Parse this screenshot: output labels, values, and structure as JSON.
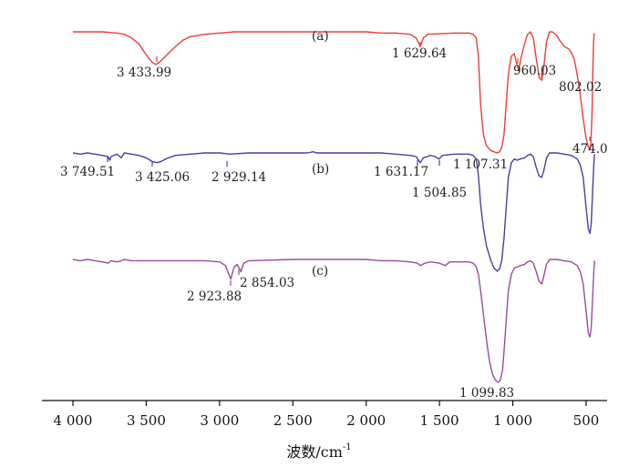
{
  "chart_data": {
    "type": "line",
    "title": "",
    "xlabel": "波数/cm",
    "xlabel_superscript": "-1",
    "xlim": [
      4150,
      440
    ],
    "x_reversed": true,
    "grid": false,
    "x_ticks": [
      {
        "value": 4000,
        "label": "4 000"
      },
      {
        "value": 3500,
        "label": "3 500"
      },
      {
        "value": 3000,
        "label": "3 000"
      },
      {
        "value": 2500,
        "label": "2 500"
      },
      {
        "value": 2000,
        "label": "2 000"
      },
      {
        "value": 1500,
        "label": "1 500"
      },
      {
        "value": 1000,
        "label": "1 000"
      },
      {
        "value": 500,
        "label": "500"
      }
    ],
    "series": [
      {
        "name": "(a)",
        "color": "#e8403a",
        "peaks": [
          "3 433.99",
          "1 629.64",
          "960.03",
          "802.02",
          "474.0"
        ],
        "points": [
          [
            4000,
            0.0
          ],
          [
            3900,
            0.0
          ],
          [
            3800,
            0.0
          ],
          [
            3700,
            0.01
          ],
          [
            3650,
            0.02
          ],
          [
            3600,
            0.05
          ],
          [
            3550,
            0.1
          ],
          [
            3500,
            0.19
          ],
          [
            3460,
            0.25
          ],
          [
            3434,
            0.27
          ],
          [
            3400,
            0.24
          ],
          [
            3350,
            0.18
          ],
          [
            3300,
            0.12
          ],
          [
            3250,
            0.07
          ],
          [
            3200,
            0.04
          ],
          [
            3100,
            0.02
          ],
          [
            3000,
            0.01
          ],
          [
            2900,
            0.0
          ],
          [
            2500,
            0.0
          ],
          [
            2100,
            0.0
          ],
          [
            2000,
            0.0
          ],
          [
            1900,
            0.01
          ],
          [
            1800,
            0.01
          ],
          [
            1700,
            0.02
          ],
          [
            1660,
            0.05
          ],
          [
            1630,
            0.12
          ],
          [
            1610,
            0.05
          ],
          [
            1580,
            0.02
          ],
          [
            1400,
            0.01
          ],
          [
            1300,
            0.01
          ],
          [
            1270,
            0.02
          ],
          [
            1250,
            0.05
          ],
          [
            1235,
            0.2
          ],
          [
            1220,
            0.6
          ],
          [
            1200,
            0.85
          ],
          [
            1180,
            0.94
          ],
          [
            1150,
            0.98
          ],
          [
            1130,
            0.99
          ],
          [
            1107,
            1.0
          ],
          [
            1090,
            0.99
          ],
          [
            1075,
            0.95
          ],
          [
            1060,
            0.85
          ],
          [
            1045,
            0.6
          ],
          [
            1030,
            0.35
          ],
          [
            1010,
            0.2
          ],
          [
            990,
            0.18
          ],
          [
            975,
            0.26
          ],
          [
            960,
            0.32
          ],
          [
            945,
            0.22
          ],
          [
            920,
            0.1
          ],
          [
            900,
            0.02
          ],
          [
            880,
            0.0
          ],
          [
            860,
            0.05
          ],
          [
            840,
            0.22
          ],
          [
            820,
            0.38
          ],
          [
            802,
            0.4
          ],
          [
            790,
            0.3
          ],
          [
            770,
            0.08
          ],
          [
            750,
            0.0
          ],
          [
            730,
            0.0
          ],
          [
            700,
            0.03
          ],
          [
            680,
            0.07
          ],
          [
            650,
            0.12
          ],
          [
            620,
            0.14
          ],
          [
            600,
            0.17
          ],
          [
            580,
            0.23
          ],
          [
            560,
            0.36
          ],
          [
            540,
            0.52
          ],
          [
            520,
            0.72
          ],
          [
            500,
            0.88
          ],
          [
            485,
            0.95
          ],
          [
            474,
            0.97
          ],
          [
            468,
            0.93
          ],
          [
            460,
            0.7
          ],
          [
            455,
            0.38
          ],
          [
            450,
            0.12
          ],
          [
            445,
            0.01
          ]
        ]
      },
      {
        "name": "(b)",
        "color": "#4343a2",
        "peaks": [
          "3 749.51",
          "3 425.06",
          "2 929.14",
          "1 631.17",
          "1 504.85",
          "1 107.31"
        ],
        "points": [
          [
            4000,
            0.0
          ],
          [
            3950,
            0.01
          ],
          [
            3900,
            0.0
          ],
          [
            3850,
            0.01
          ],
          [
            3800,
            0.02
          ],
          [
            3760,
            0.03
          ],
          [
            3749,
            0.06
          ],
          [
            3740,
            0.03
          ],
          [
            3700,
            0.01
          ],
          [
            3670,
            0.04
          ],
          [
            3650,
            0.0
          ],
          [
            3600,
            0.01
          ],
          [
            3550,
            0.02
          ],
          [
            3500,
            0.04
          ],
          [
            3460,
            0.07
          ],
          [
            3425,
            0.08
          ],
          [
            3400,
            0.07
          ],
          [
            3350,
            0.04
          ],
          [
            3300,
            0.02
          ],
          [
            3200,
            0.01
          ],
          [
            3100,
            0.0
          ],
          [
            3000,
            0.0
          ],
          [
            2929,
            0.01
          ],
          [
            2800,
            0.0
          ],
          [
            2500,
            0.0
          ],
          [
            2400,
            0.0
          ],
          [
            2360,
            -0.01
          ],
          [
            2340,
            0.0
          ],
          [
            2100,
            0.0
          ],
          [
            1900,
            0.0
          ],
          [
            1800,
            0.01
          ],
          [
            1700,
            0.02
          ],
          [
            1660,
            0.03
          ],
          [
            1631,
            0.08
          ],
          [
            1610,
            0.04
          ],
          [
            1560,
            0.02
          ],
          [
            1530,
            0.03
          ],
          [
            1504,
            0.05
          ],
          [
            1480,
            0.02
          ],
          [
            1400,
            0.01
          ],
          [
            1300,
            0.01
          ],
          [
            1270,
            0.02
          ],
          [
            1250,
            0.05
          ],
          [
            1235,
            0.18
          ],
          [
            1220,
            0.42
          ],
          [
            1200,
            0.62
          ],
          [
            1180,
            0.76
          ],
          [
            1150,
            0.88
          ],
          [
            1130,
            0.94
          ],
          [
            1107,
            0.97
          ],
          [
            1090,
            0.95
          ],
          [
            1075,
            0.88
          ],
          [
            1060,
            0.7
          ],
          [
            1045,
            0.45
          ],
          [
            1030,
            0.2
          ],
          [
            1010,
            0.08
          ],
          [
            990,
            0.05
          ],
          [
            970,
            0.06
          ],
          [
            950,
            0.05
          ],
          [
            920,
            0.04
          ],
          [
            900,
            0.02
          ],
          [
            880,
            0.01
          ],
          [
            860,
            0.03
          ],
          [
            840,
            0.12
          ],
          [
            820,
            0.19
          ],
          [
            802,
            0.2
          ],
          [
            790,
            0.15
          ],
          [
            770,
            0.04
          ],
          [
            750,
            0.0
          ],
          [
            700,
            0.0
          ],
          [
            650,
            0.01
          ],
          [
            600,
            0.02
          ],
          [
            560,
            0.05
          ],
          [
            540,
            0.1
          ],
          [
            520,
            0.2
          ],
          [
            500,
            0.45
          ],
          [
            485,
            0.62
          ],
          [
            474,
            0.66
          ],
          [
            465,
            0.58
          ],
          [
            455,
            0.3
          ],
          [
            448,
            0.1
          ],
          [
            443,
            0.01
          ]
        ]
      },
      {
        "name": "(c)",
        "color": "#9a4d9a",
        "peaks": [
          "2 923.88",
          "2 854.03",
          "1 099.83"
        ],
        "points": [
          [
            4000,
            0.0
          ],
          [
            3950,
            0.01
          ],
          [
            3900,
            0.0
          ],
          [
            3850,
            0.01
          ],
          [
            3800,
            0.02
          ],
          [
            3760,
            0.03
          ],
          [
            3740,
            0.01
          ],
          [
            3700,
            0.02
          ],
          [
            3670,
            0.01
          ],
          [
            3650,
            0.0
          ],
          [
            3600,
            0.01
          ],
          [
            3500,
            0.01
          ],
          [
            3400,
            0.01
          ],
          [
            3300,
            0.01
          ],
          [
            3200,
            0.01
          ],
          [
            3100,
            0.01
          ],
          [
            3000,
            0.02
          ],
          [
            2960,
            0.05
          ],
          [
            2924,
            0.16
          ],
          [
            2900,
            0.06
          ],
          [
            2880,
            0.04
          ],
          [
            2854,
            0.1
          ],
          [
            2835,
            0.03
          ],
          [
            2800,
            0.01
          ],
          [
            2500,
            0.0
          ],
          [
            2200,
            0.0
          ],
          [
            2000,
            0.0
          ],
          [
            1900,
            0.01
          ],
          [
            1800,
            0.01
          ],
          [
            1700,
            0.02
          ],
          [
            1650,
            0.03
          ],
          [
            1630,
            0.05
          ],
          [
            1600,
            0.03
          ],
          [
            1560,
            0.02
          ],
          [
            1500,
            0.03
          ],
          [
            1460,
            0.05
          ],
          [
            1430,
            0.02
          ],
          [
            1400,
            0.02
          ],
          [
            1300,
            0.02
          ],
          [
            1270,
            0.03
          ],
          [
            1250,
            0.06
          ],
          [
            1235,
            0.12
          ],
          [
            1220,
            0.25
          ],
          [
            1200,
            0.45
          ],
          [
            1180,
            0.65
          ],
          [
            1160,
            0.82
          ],
          [
            1140,
            0.93
          ],
          [
            1120,
            0.98
          ],
          [
            1100,
            1.0
          ],
          [
            1085,
            0.98
          ],
          [
            1070,
            0.9
          ],
          [
            1060,
            0.75
          ],
          [
            1045,
            0.5
          ],
          [
            1030,
            0.25
          ],
          [
            1010,
            0.12
          ],
          [
            990,
            0.07
          ],
          [
            970,
            0.06
          ],
          [
            950,
            0.05
          ],
          [
            920,
            0.04
          ],
          [
            900,
            0.02
          ],
          [
            880,
            0.01
          ],
          [
            860,
            0.03
          ],
          [
            840,
            0.1
          ],
          [
            820,
            0.18
          ],
          [
            802,
            0.2
          ],
          [
            790,
            0.14
          ],
          [
            770,
            0.04
          ],
          [
            750,
            0.0
          ],
          [
            700,
            0.0
          ],
          [
            650,
            0.01
          ],
          [
            600,
            0.02
          ],
          [
            560,
            0.05
          ],
          [
            540,
            0.1
          ],
          [
            520,
            0.2
          ],
          [
            500,
            0.42
          ],
          [
            485,
            0.6
          ],
          [
            474,
            0.63
          ],
          [
            465,
            0.55
          ],
          [
            455,
            0.3
          ],
          [
            448,
            0.1
          ],
          [
            443,
            0.01
          ]
        ]
      }
    ]
  }
}
